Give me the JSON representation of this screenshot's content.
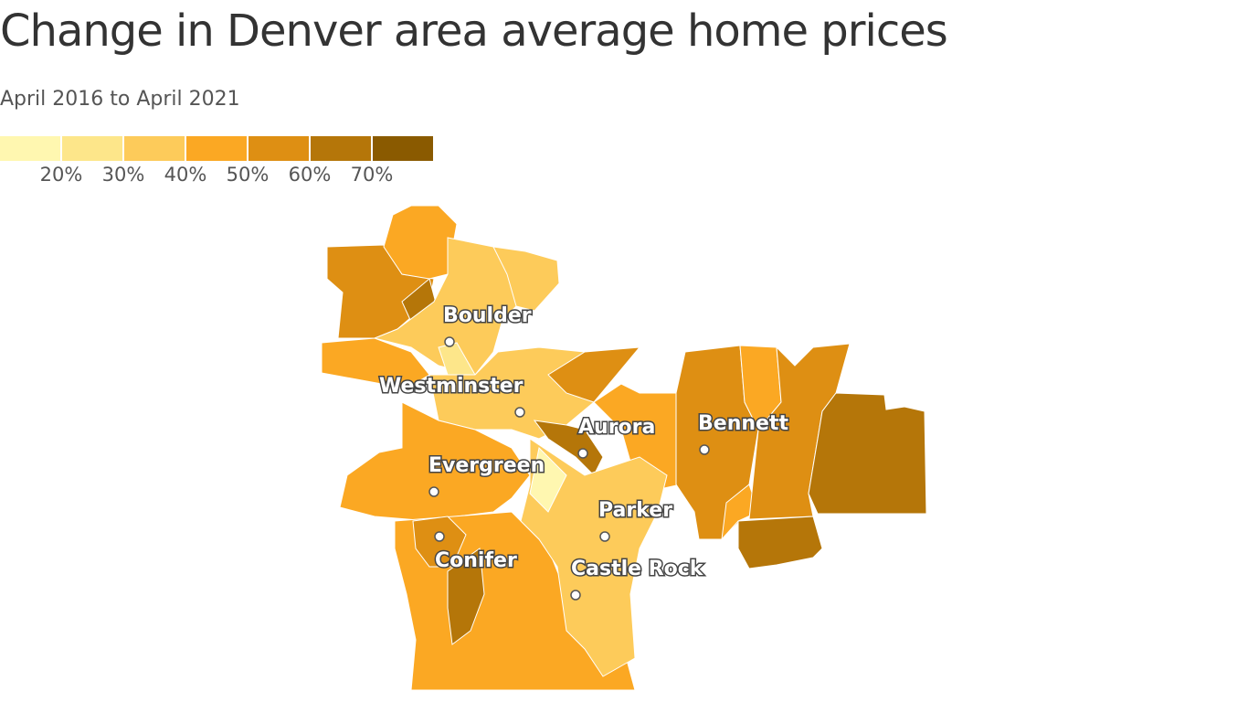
{
  "header": {
    "title": "Change in Denver area average home prices",
    "subtitle": "April 2016 to April 2021"
  },
  "legend": {
    "colors": [
      "#fff7b0",
      "#fde68a",
      "#fdcb5a",
      "#fba823",
      "#de8f13",
      "#b57609",
      "#8a5a00"
    ],
    "ticks": [
      {
        "value": 20,
        "label": "20%"
      },
      {
        "value": 30,
        "label": "30%"
      },
      {
        "value": 40,
        "label": "40%"
      },
      {
        "value": 50,
        "label": "50%"
      },
      {
        "value": 60,
        "label": "60%"
      },
      {
        "value": 70,
        "label": "70%"
      }
    ]
  },
  "map": {
    "cities": [
      {
        "label": "Boulder"
      },
      {
        "label": "Westminster"
      },
      {
        "label": "Aurora"
      },
      {
        "label": "Bennett"
      },
      {
        "label": "Evergreen"
      },
      {
        "label": "Conifer"
      },
      {
        "label": "Parker"
      },
      {
        "label": "Castle Rock"
      }
    ]
  }
}
